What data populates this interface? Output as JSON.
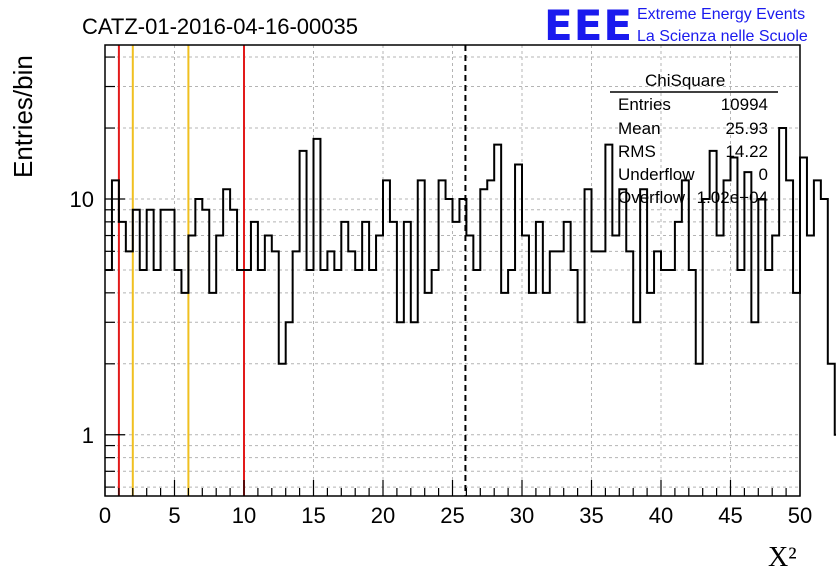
{
  "header": {
    "title": "CATZ-01-2016-04-16-00035",
    "logo_text": "EEE",
    "brand_line1": "Extreme Energy Events",
    "brand_line2": "La Scienza nelle Scuole"
  },
  "stats_box": {
    "title": "ChiSquare",
    "rows": [
      {
        "label": "Entries",
        "value": "10994"
      },
      {
        "label": "Mean",
        "value": "25.93"
      },
      {
        "label": "RMS",
        "value": "14.22"
      },
      {
        "label": "Underflow",
        "value": "0"
      },
      {
        "label": "Overflow",
        "value": "1.02e+04"
      }
    ]
  },
  "chart_data": {
    "type": "histogram",
    "xlabel": "X²",
    "ylabel": "Entries/bin",
    "xlim": [
      0,
      50
    ],
    "ylim": [
      0.55,
      45
    ],
    "y_scale": "log",
    "grid": true,
    "bin_width": 0.5,
    "x_ticks": [
      "0",
      "5",
      "10",
      "15",
      "20",
      "25",
      "30",
      "35",
      "40",
      "45",
      "50"
    ],
    "y_ticks": [
      "1",
      "10"
    ],
    "values": [
      5,
      12,
      8,
      6,
      9,
      5,
      9,
      5,
      9,
      9,
      5,
      4,
      7,
      10,
      9,
      4,
      7,
      11,
      9,
      5,
      5,
      8,
      5,
      7,
      6,
      2,
      3,
      6,
      16,
      5,
      18,
      5,
      6,
      5,
      8,
      6,
      5,
      8,
      5,
      7,
      12,
      8,
      3,
      8,
      3,
      12,
      4,
      5,
      12,
      10,
      8,
      10,
      7,
      5,
      11,
      12,
      17,
      4,
      5,
      14,
      7,
      4,
      8,
      4,
      6,
      6,
      8,
      5,
      3,
      11,
      6,
      6,
      17,
      7,
      11,
      6,
      3,
      11,
      4,
      6,
      5,
      5,
      8,
      12,
      5,
      2,
      10,
      16,
      7,
      12,
      15,
      5,
      13,
      3,
      10,
      5,
      7,
      20,
      12,
      4,
      15,
      7,
      12,
      10,
      2,
      1,
      10
    ],
    "vertical_lines": [
      {
        "x": 1,
        "color": "#e21a1a",
        "style": "solid"
      },
      {
        "x": 2,
        "color": "#f0c020",
        "style": "solid"
      },
      {
        "x": 6,
        "color": "#f0c020",
        "style": "solid"
      },
      {
        "x": 10,
        "color": "#e21a1a",
        "style": "solid"
      },
      {
        "x": 25.93,
        "color": "#000000",
        "style": "dashed"
      }
    ]
  }
}
